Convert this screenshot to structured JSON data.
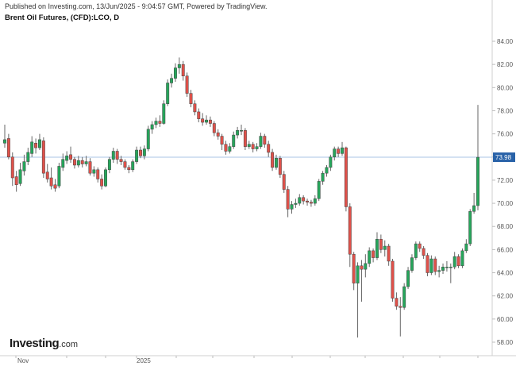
{
  "header": {
    "published": "Published on Investing.com, 13/Jun/2025 - 9:04:57 GMT, Powered by TradingView.",
    "instrument": "Brent Oil Futures, (CFD):LCO, D"
  },
  "logo": {
    "brand": "Investing",
    "suffix": ".com"
  },
  "colors": {
    "up": "#26a65b",
    "down": "#e0514a",
    "wick": "#666666",
    "price_line": "#a9c6e6",
    "price_tag": "#2962a8",
    "axis_text": "#555555"
  },
  "chart_data": {
    "type": "candlestick",
    "title": "Brent Oil Futures, (CFD):LCO, D",
    "y_axis": {
      "position": "right",
      "range": [
        57,
        85
      ],
      "ticks": [
        58.0,
        60.0,
        62.0,
        64.0,
        66.0,
        68.0,
        70.0,
        72.0,
        74.0,
        76.0,
        78.0,
        80.0,
        82.0,
        84.0
      ],
      "tick_labels": [
        "58.00",
        "60.00",
        "62.00",
        "64.00",
        "66.00",
        "68.00",
        "70.00",
        "72.00",
        "74.00",
        "76.00",
        "78.00",
        "80.00",
        "82.00",
        "84.00"
      ]
    },
    "x_axis": {
      "labels": [
        "Nov",
        "2025"
      ]
    },
    "last_price": 73.98,
    "last_price_label": "73.98",
    "closes": [
      75.5,
      74.0,
      72.2,
      71.6,
      72.9,
      73.6,
      74.4,
      75.3,
      74.8,
      75.5,
      72.6,
      72.1,
      71.5,
      71.3,
      73.2,
      73.8,
      74.1,
      73.8,
      73.3,
      73.7,
      73.4,
      73.6,
      72.6,
      72.9,
      72.1,
      71.5,
      72.9,
      73.8,
      74.5,
      73.8,
      73.6,
      73.1,
      72.9,
      73.6,
      74.6,
      74.1,
      74.7,
      76.4,
      76.8,
      77.1,
      76.9,
      78.6,
      80.4,
      80.8,
      81.7,
      82.0,
      81.0,
      79.5,
      78.6,
      77.9,
      77.3,
      77.0,
      77.2,
      76.9,
      76.1,
      75.8,
      75.1,
      74.5,
      74.9,
      75.9,
      76.3,
      76.3,
      74.9,
      75.1,
      74.7,
      74.9,
      75.8,
      75.1,
      74.4,
      73.1,
      73.9,
      72.5,
      71.2,
      69.5,
      69.9,
      70.0,
      70.5,
      70.2,
      70.1,
      70.0,
      70.4,
      71.9,
      72.6,
      73.1,
      74.0,
      74.7,
      74.3,
      74.8,
      69.7,
      65.6,
      63.1,
      64.6,
      64.3,
      64.8,
      65.9,
      65.3,
      66.9,
      66.0,
      66.3,
      65.0,
      61.8,
      61.1,
      61.0,
      62.8,
      64.2,
      65.3,
      66.5,
      66.1,
      65.5,
      64.0,
      65.2,
      64.1,
      64.2,
      64.5,
      64.5,
      64.5,
      65.4,
      64.6,
      65.9,
      66.5,
      69.3,
      69.8,
      73.98
    ],
    "series": [
      {
        "ohlc": [
          [
            75.2,
            76.8,
            74.8,
            75.5
          ],
          [
            75.6,
            76.0,
            73.8,
            74.0
          ],
          [
            74.0,
            74.4,
            71.5,
            72.2
          ],
          [
            72.3,
            72.8,
            71.0,
            71.6
          ],
          [
            71.7,
            73.5,
            71.5,
            72.9
          ],
          [
            72.8,
            74.2,
            72.4,
            73.6
          ],
          [
            73.6,
            74.8,
            73.3,
            74.4
          ],
          [
            74.3,
            75.8,
            74.0,
            75.3
          ],
          [
            75.2,
            75.6,
            74.3,
            74.8
          ],
          [
            74.8,
            76.0,
            74.6,
            75.5
          ]
        ]
      },
      {
        "ohlc": [
          [
            75.4,
            75.7,
            72.2,
            72.6
          ],
          [
            72.7,
            73.4,
            71.8,
            72.1
          ],
          [
            72.2,
            73.1,
            71.2,
            71.5
          ],
          [
            71.6,
            72.1,
            71.0,
            71.3
          ],
          [
            71.5,
            73.5,
            71.3,
            73.2
          ],
          [
            73.1,
            74.3,
            72.8,
            73.8
          ],
          [
            73.7,
            74.5,
            73.4,
            74.1
          ],
          [
            74.2,
            74.9,
            73.5,
            73.8
          ],
          [
            73.8,
            74.0,
            73.0,
            73.3
          ],
          [
            73.3,
            74.1,
            73.1,
            73.7
          ]
        ]
      },
      {
        "ohlc": [
          [
            73.7,
            74.0,
            73.1,
            73.4
          ],
          [
            73.4,
            74.1,
            73.2,
            73.6
          ],
          [
            73.6,
            73.9,
            72.4,
            72.6
          ],
          [
            72.6,
            73.2,
            72.3,
            72.9
          ],
          [
            72.9,
            73.1,
            71.8,
            72.1
          ],
          [
            72.1,
            72.5,
            71.2,
            71.5
          ],
          [
            71.5,
            73.1,
            71.4,
            72.9
          ],
          [
            72.9,
            74.0,
            72.6,
            73.8
          ],
          [
            73.8,
            74.8,
            73.5,
            74.5
          ],
          [
            74.5,
            74.7,
            73.4,
            73.8
          ]
        ]
      },
      {
        "ohlc": [
          [
            73.8,
            74.1,
            73.3,
            73.6
          ],
          [
            73.6,
            73.8,
            72.9,
            73.1
          ],
          [
            73.1,
            73.3,
            72.6,
            72.9
          ],
          [
            72.9,
            73.8,
            72.7,
            73.6
          ],
          [
            73.6,
            74.9,
            73.4,
            74.6
          ],
          [
            74.6,
            74.9,
            73.9,
            74.1
          ],
          [
            74.1,
            75.0,
            73.8,
            74.7
          ],
          [
            74.7,
            76.7,
            74.5,
            76.4
          ],
          [
            76.4,
            77.1,
            76.0,
            76.8
          ],
          [
            76.8,
            77.4,
            76.5,
            77.1
          ]
        ]
      },
      {
        "ohlc": [
          [
            77.1,
            77.6,
            76.6,
            76.9
          ],
          [
            76.9,
            78.9,
            76.8,
            78.6
          ],
          [
            78.6,
            80.7,
            78.4,
            80.4
          ],
          [
            80.4,
            81.2,
            80.0,
            80.8
          ],
          [
            80.8,
            82.1,
            80.5,
            81.7
          ],
          [
            81.7,
            82.6,
            81.2,
            82.0
          ],
          [
            82.0,
            82.3,
            80.6,
            81.0
          ],
          [
            81.0,
            81.3,
            79.2,
            79.5
          ],
          [
            79.5,
            79.8,
            78.3,
            78.6
          ],
          [
            78.6,
            78.9,
            77.6,
            77.9
          ]
        ]
      },
      {
        "ohlc": [
          [
            77.9,
            78.2,
            77.0,
            77.3
          ],
          [
            77.3,
            77.8,
            76.7,
            77.0
          ],
          [
            77.0,
            77.6,
            76.8,
            77.2
          ],
          [
            77.2,
            77.5,
            76.6,
            76.9
          ],
          [
            76.9,
            77.1,
            75.8,
            76.1
          ],
          [
            76.1,
            76.4,
            75.5,
            75.8
          ],
          [
            75.8,
            76.0,
            74.6,
            75.1
          ],
          [
            75.1,
            75.4,
            74.2,
            74.5
          ],
          [
            74.5,
            75.2,
            74.3,
            74.9
          ],
          [
            74.9,
            76.2,
            74.7,
            75.9
          ]
        ]
      },
      {
        "ohlc": [
          [
            75.9,
            76.6,
            75.6,
            76.3
          ],
          [
            76.3,
            76.8,
            75.9,
            76.3
          ],
          [
            76.3,
            76.5,
            74.6,
            74.9
          ],
          [
            74.9,
            75.4,
            74.7,
            75.1
          ],
          [
            75.1,
            75.3,
            74.4,
            74.7
          ],
          [
            74.7,
            75.2,
            74.5,
            74.9
          ],
          [
            74.9,
            76.1,
            74.7,
            75.8
          ],
          [
            75.8,
            76.0,
            74.8,
            75.1
          ],
          [
            75.1,
            75.4,
            74.0,
            74.4
          ],
          [
            74.4,
            74.7,
            72.8,
            73.1
          ]
        ]
      },
      {
        "ohlc": [
          [
            73.1,
            74.2,
            72.9,
            73.9
          ],
          [
            73.9,
            74.1,
            72.2,
            72.5
          ],
          [
            72.5,
            72.8,
            70.9,
            71.2
          ],
          [
            71.2,
            71.5,
            68.8,
            69.5
          ],
          [
            69.5,
            70.2,
            69.1,
            69.9
          ],
          [
            69.9,
            70.4,
            69.6,
            70.0
          ],
          [
            70.0,
            70.8,
            69.8,
            70.5
          ],
          [
            70.5,
            70.7,
            69.9,
            70.2
          ],
          [
            70.2,
            70.4,
            69.8,
            70.1
          ],
          [
            70.1,
            70.3,
            69.7,
            70.0
          ]
        ]
      },
      {
        "ohlc": [
          [
            70.0,
            70.7,
            69.8,
            70.4
          ],
          [
            70.4,
            72.1,
            70.2,
            71.9
          ],
          [
            71.9,
            72.8,
            71.6,
            72.6
          ],
          [
            72.6,
            73.3,
            72.3,
            73.1
          ],
          [
            73.1,
            74.2,
            72.8,
            74.0
          ],
          [
            74.0,
            74.9,
            73.7,
            74.7
          ],
          [
            74.7,
            74.9,
            74.0,
            74.3
          ],
          [
            74.3,
            75.3,
            74.1,
            74.8
          ],
          [
            74.8,
            74.9,
            69.3,
            69.7
          ],
          [
            69.7,
            70.0,
            64.5,
            65.6
          ]
        ]
      },
      {
        "ohlc": [
          [
            65.6,
            65.8,
            62.5,
            63.1
          ],
          [
            63.1,
            64.9,
            58.4,
            64.6
          ],
          [
            64.6,
            65.1,
            61.5,
            64.3
          ],
          [
            64.3,
            65.6,
            63.6,
            64.8
          ],
          [
            64.8,
            66.2,
            64.5,
            65.9
          ],
          [
            65.9,
            66.1,
            64.9,
            65.3
          ],
          [
            65.3,
            67.5,
            65.1,
            66.9
          ],
          [
            66.9,
            67.3,
            65.7,
            66.0
          ],
          [
            66.0,
            66.8,
            65.4,
            66.3
          ],
          [
            66.3,
            66.5,
            64.6,
            65.0
          ]
        ]
      },
      {
        "ohlc": [
          [
            65.0,
            65.2,
            61.5,
            61.8
          ],
          [
            61.8,
            62.3,
            60.8,
            61.1
          ],
          [
            61.1,
            61.9,
            58.5,
            61.0
          ],
          [
            61.0,
            63.1,
            60.8,
            62.8
          ],
          [
            62.8,
            64.5,
            62.6,
            64.2
          ],
          [
            64.2,
            65.6,
            64.0,
            65.3
          ],
          [
            65.3,
            66.7,
            65.1,
            66.5
          ],
          [
            66.5,
            66.7,
            65.8,
            66.1
          ],
          [
            66.1,
            66.3,
            65.2,
            65.5
          ],
          [
            65.5,
            65.7,
            63.7,
            64.0
          ]
        ]
      },
      {
        "ohlc": [
          [
            64.0,
            65.5,
            63.8,
            65.2
          ],
          [
            65.2,
            65.4,
            63.8,
            64.1
          ],
          [
            64.1,
            64.6,
            63.6,
            64.2
          ],
          [
            64.2,
            64.8,
            63.9,
            64.5
          ],
          [
            64.5,
            65.0,
            64.1,
            64.5
          ],
          [
            64.5,
            64.8,
            63.1,
            64.5
          ],
          [
            64.5,
            65.8,
            64.3,
            65.4
          ],
          [
            65.4,
            65.6,
            64.4,
            64.6
          ],
          [
            64.6,
            66.1,
            64.4,
            65.9
          ],
          [
            65.9,
            66.9,
            65.7,
            66.5
          ]
        ]
      },
      {
        "ohlc": [
          [
            66.5,
            69.5,
            66.3,
            69.3
          ],
          [
            69.3,
            70.9,
            69.1,
            69.8
          ],
          [
            69.8,
            78.5,
            69.4,
            73.98
          ]
        ]
      }
    ]
  }
}
